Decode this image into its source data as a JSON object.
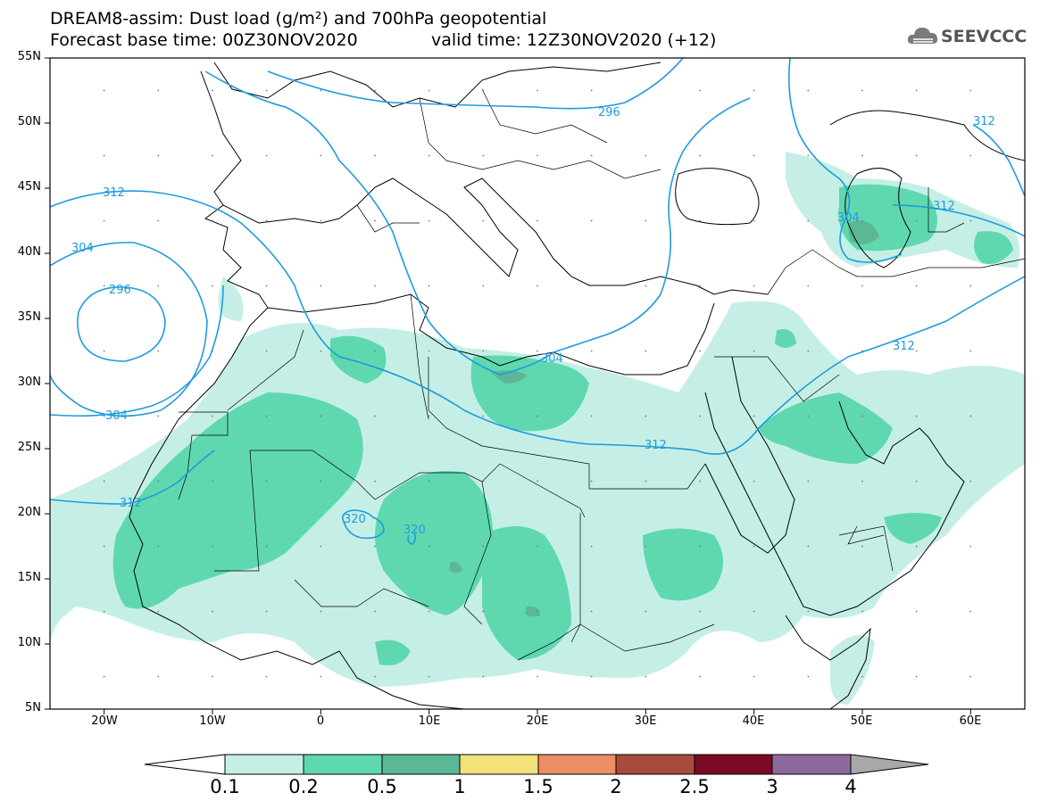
{
  "header": {
    "title_line1": "DREAM8-assim: Dust load (g/m²) and 700hPa geopotential",
    "forecast_base": "Forecast base time: 00Z30NOV2020",
    "valid_time": "valid time: 12Z30NOV2020 (+12)"
  },
  "logo": {
    "name": "cloud-logo-icon",
    "text": "SEEVCCC"
  },
  "map": {
    "lon_range": [
      -25,
      65
    ],
    "lat_range": [
      5,
      55
    ],
    "lat_ticks": [
      "55N",
      "50N",
      "45N",
      "40N",
      "35N",
      "30N",
      "25N",
      "20N",
      "15N",
      "10N",
      "5N"
    ],
    "lon_ticks": [
      "20W",
      "10W",
      "0",
      "10E",
      "20E",
      "30E",
      "40E",
      "50E",
      "60E"
    ],
    "contour_labels": [
      "296",
      "304",
      "312",
      "312",
      "304",
      "296",
      "304",
      "312",
      "312",
      "320",
      "320",
      "304",
      "312",
      "312"
    ],
    "colors": {
      "contour": "#1f9bdc",
      "border": "#000000"
    }
  },
  "colorbar": {
    "labels": [
      "0.1",
      "0.2",
      "0.5",
      "1",
      "1.5",
      "2",
      "2.5",
      "3",
      "4"
    ],
    "colors": [
      "#c5efe6",
      "#5fd8b0",
      "#5cb894",
      "#f2e27a",
      "#ec8f66",
      "#a84a3c",
      "#7a0a25",
      "#8c6a9c",
      "#a8a8a8"
    ]
  }
}
